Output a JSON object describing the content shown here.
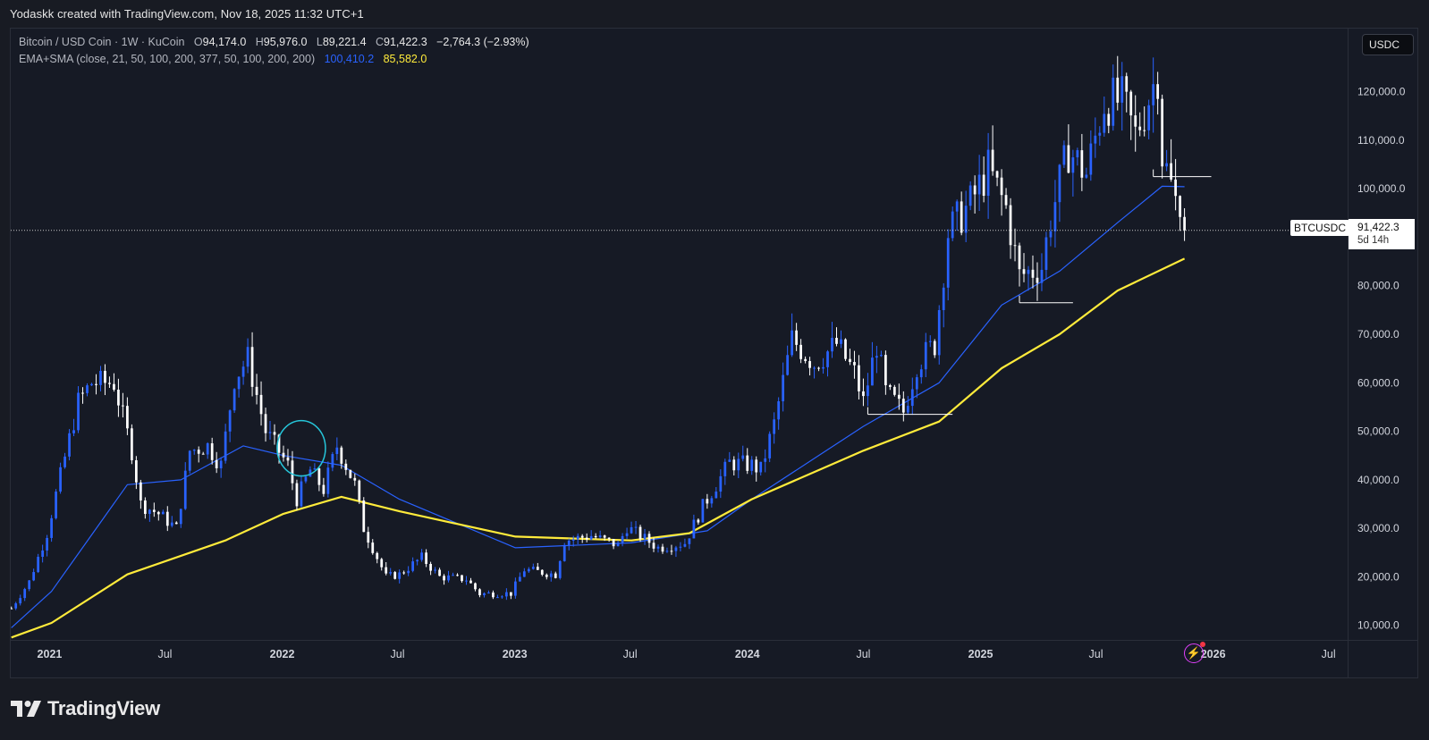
{
  "watermark": "Yodaskk created with TradingView.com, Nov 18, 2025 11:32 UTC+1",
  "legend": {
    "symbol": "Bitcoin / USD Coin · 1W · KuCoin",
    "o_label": "O",
    "o_value": "94,174.0",
    "h_label": "H",
    "h_value": "95,976.0",
    "l_label": "L",
    "l_value": "89,221.4",
    "c_label": "C",
    "c_value": "91,422.3",
    "change": "−2,764.3 (−2.93%)",
    "indicator": "EMA+SMA (close, 21, 50, 100, 200, 377, 50, 100, 200, 200)",
    "ema_value": "100,410.2",
    "sma_value": "85,582.0"
  },
  "currency_button": "USDC",
  "symbol_tag": "BTCUSDC",
  "price_tag": {
    "price": "91,422.3",
    "countdown": "5d 14h"
  },
  "logo_text": "TradingView",
  "colors": {
    "bull": "#2962ff",
    "bear": "#ffffff",
    "ema": "#2962ff",
    "sma": "#ffeb3b",
    "circle": "#26c6da",
    "background": "#161a25"
  },
  "chart_data": {
    "type": "candlestick",
    "timeframe": "1W",
    "xlim": [
      "2020-11-01",
      "2026-07-31"
    ],
    "ylim": [
      7000,
      133000
    ],
    "x_ticks": [
      "2021",
      "Jul",
      "2022",
      "Jul",
      "2023",
      "Jul",
      "2024",
      "Jul",
      "2025",
      "Jul",
      "2026",
      "Jul"
    ],
    "x_tick_dates": [
      "2021-01-01",
      "2021-07-01",
      "2022-01-01",
      "2022-07-01",
      "2023-01-01",
      "2023-07-01",
      "2024-01-01",
      "2024-07-01",
      "2025-01-01",
      "2025-07-01",
      "2026-01-01",
      "2026-07-01"
    ],
    "y_ticks": [
      10000,
      20000,
      30000,
      40000,
      50000,
      60000,
      70000,
      80000,
      90000,
      100000,
      110000,
      120000
    ],
    "y_tick_labels": [
      "10,000.0",
      "20,000.0",
      "30,000.0",
      "40,000.0",
      "50,000.0",
      "60,000.0",
      "70,000.0",
      "80,000.0",
      "90,000.0",
      "100,000.0",
      "110,000.0",
      "120,000.0"
    ],
    "last_close": 91422.3,
    "weekly_close_anchors": [
      [
        "2020-11-02",
        13500
      ],
      [
        "2020-11-30",
        19000
      ],
      [
        "2020-12-28",
        29000
      ],
      [
        "2021-01-11",
        37000
      ],
      [
        "2021-02-15",
        56000
      ],
      [
        "2021-03-08",
        60000
      ],
      [
        "2021-04-12",
        60000
      ],
      [
        "2021-05-10",
        46000
      ],
      [
        "2021-05-24",
        35000
      ],
      [
        "2021-06-21",
        33000
      ],
      [
        "2021-07-19",
        30000
      ],
      [
        "2021-08-09",
        46000
      ],
      [
        "2021-09-06",
        47000
      ],
      [
        "2021-09-27",
        43000
      ],
      [
        "2021-10-18",
        61000
      ],
      [
        "2021-11-08",
        65000
      ],
      [
        "2021-12-06",
        50000
      ],
      [
        "2022-01-10",
        43000
      ],
      [
        "2022-01-24",
        36000
      ],
      [
        "2022-02-14",
        42000
      ],
      [
        "2022-03-07",
        38000
      ],
      [
        "2022-03-28",
        47000
      ],
      [
        "2022-04-25",
        39000
      ],
      [
        "2022-05-09",
        30000
      ],
      [
        "2022-06-13",
        20000
      ],
      [
        "2022-07-04",
        20500
      ],
      [
        "2022-08-08",
        24000
      ],
      [
        "2022-09-05",
        20000
      ],
      [
        "2022-10-17",
        19500
      ],
      [
        "2022-11-07",
        16500
      ],
      [
        "2022-12-26",
        16600
      ],
      [
        "2023-01-16",
        21500
      ],
      [
        "2023-03-06",
        20500
      ],
      [
        "2023-03-20",
        27500
      ],
      [
        "2023-05-01",
        28500
      ],
      [
        "2023-06-12",
        26500
      ],
      [
        "2023-06-26",
        30300
      ],
      [
        "2023-08-14",
        26000
      ],
      [
        "2023-09-25",
        27000
      ],
      [
        "2023-10-23",
        34500
      ],
      [
        "2023-12-04",
        43500
      ],
      [
        "2024-01-08",
        43000
      ],
      [
        "2024-01-22",
        42000
      ],
      [
        "2024-02-12",
        51500
      ],
      [
        "2024-03-11",
        69000
      ],
      [
        "2024-04-15",
        64000
      ],
      [
        "2024-05-20",
        68000
      ],
      [
        "2024-06-17",
        62000
      ],
      [
        "2024-07-01",
        56000
      ],
      [
        "2024-07-22",
        68000
      ],
      [
        "2024-08-05",
        58000
      ],
      [
        "2024-09-02",
        54000
      ],
      [
        "2024-09-23",
        64000
      ],
      [
        "2024-10-21",
        68000
      ],
      [
        "2024-11-11",
        91000
      ],
      [
        "2024-12-16",
        97000
      ],
      [
        "2025-01-13",
        104000
      ],
      [
        "2025-02-10",
        96000
      ],
      [
        "2025-03-03",
        82000
      ],
      [
        "2025-04-07",
        84000
      ],
      [
        "2025-04-21",
        94000
      ],
      [
        "2025-05-19",
        108000
      ],
      [
        "2025-06-16",
        103000
      ],
      [
        "2025-07-14",
        118000
      ],
      [
        "2025-08-11",
        118000
      ],
      [
        "2025-09-01",
        111000
      ],
      [
        "2025-10-06",
        124000
      ],
      [
        "2025-10-13",
        107000
      ],
      [
        "2025-11-10",
        94174
      ],
      [
        "2025-11-17",
        91422
      ]
    ],
    "series": [
      {
        "name": "EMA (50)",
        "color": "#2962ff",
        "points": [
          [
            "2020-11-02",
            9500
          ],
          [
            "2021-01-04",
            17000
          ],
          [
            "2021-05-03",
            39000
          ],
          [
            "2021-07-26",
            40000
          ],
          [
            "2021-11-01",
            47000
          ],
          [
            "2022-01-03",
            45000
          ],
          [
            "2022-04-04",
            43000
          ],
          [
            "2022-07-04",
            36000
          ],
          [
            "2023-01-02",
            26000
          ],
          [
            "2023-07-03",
            27000
          ],
          [
            "2023-10-30",
            29500
          ],
          [
            "2024-01-08",
            36000
          ],
          [
            "2024-07-01",
            51000
          ],
          [
            "2024-10-28",
            60000
          ],
          [
            "2025-02-03",
            76000
          ],
          [
            "2025-05-05",
            83000
          ],
          [
            "2025-08-04",
            93000
          ],
          [
            "2025-10-13",
            100500
          ],
          [
            "2025-11-17",
            100410
          ]
        ]
      },
      {
        "name": "SMA (200)",
        "color": "#ffeb3b",
        "points": [
          [
            "2020-11-02",
            7500
          ],
          [
            "2021-01-04",
            10500
          ],
          [
            "2021-05-03",
            20500
          ],
          [
            "2021-10-04",
            27500
          ],
          [
            "2022-01-03",
            33000
          ],
          [
            "2022-04-04",
            36500
          ],
          [
            "2022-07-04",
            33500
          ],
          [
            "2023-01-02",
            28300
          ],
          [
            "2023-07-03",
            27500
          ],
          [
            "2023-10-02",
            29000
          ],
          [
            "2024-01-08",
            36000
          ],
          [
            "2024-07-01",
            46000
          ],
          [
            "2024-10-28",
            52000
          ],
          [
            "2025-02-03",
            63000
          ],
          [
            "2025-05-05",
            70000
          ],
          [
            "2025-08-04",
            79000
          ],
          [
            "2025-11-17",
            85582
          ]
        ]
      }
    ],
    "annotations": [
      {
        "type": "hline",
        "start": "2024-07-08",
        "end": "2024-11-18",
        "value": 53500
      },
      {
        "type": "hline",
        "start": "2025-03-03",
        "end": "2025-05-26",
        "value": 76500
      },
      {
        "type": "hline",
        "start": "2025-09-29",
        "end": "2025-12-29",
        "value": 102500
      },
      {
        "type": "circle",
        "date": "2022-01-31",
        "value": 46500
      }
    ],
    "grid": false,
    "legend_position": "top-left"
  }
}
